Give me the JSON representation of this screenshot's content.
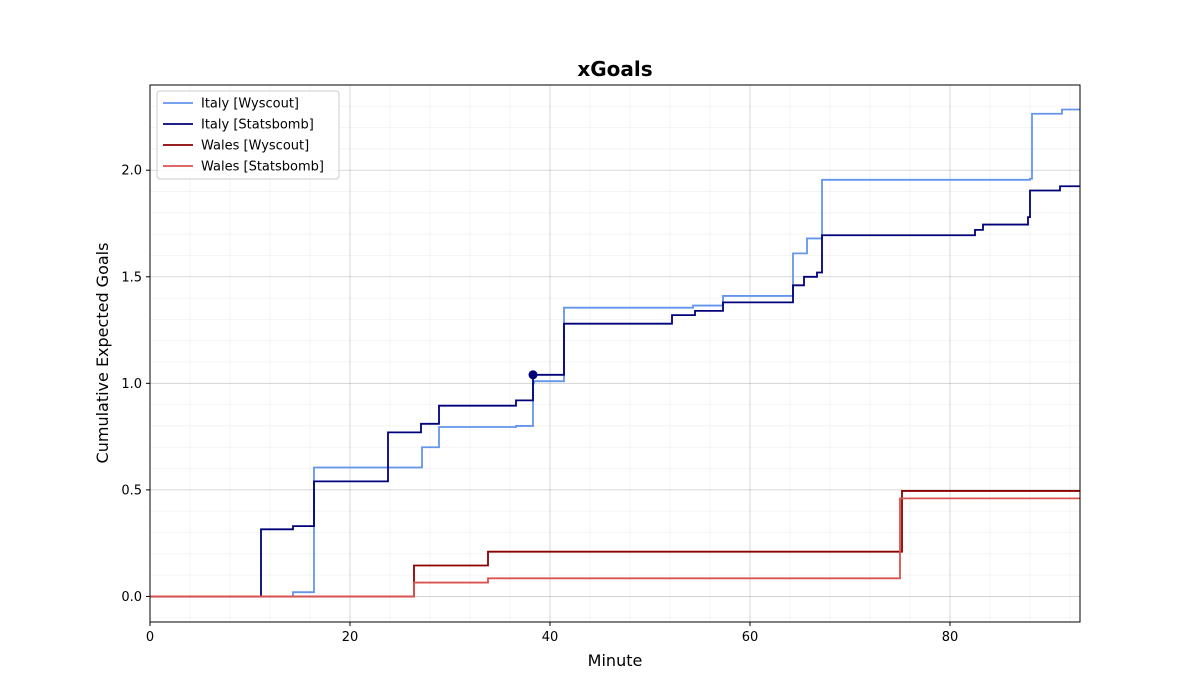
{
  "chart_data": {
    "type": "line",
    "title": "xGoals",
    "xlabel": "Minute",
    "ylabel": "Cumulative Expected Goals",
    "xlim": [
      0,
      93
    ],
    "ylim": [
      -0.12,
      2.4
    ],
    "xticks": [
      0,
      20,
      40,
      60,
      80
    ],
    "xtick_labels": [
      "0",
      "20",
      "40",
      "60",
      "80"
    ],
    "yticks": [
      0.0,
      0.5,
      1.0,
      1.5,
      2.0
    ],
    "ytick_labels": [
      "0.0",
      "0.5",
      "1.0",
      "1.5",
      "2.0"
    ],
    "grid": true,
    "minor_grid": true,
    "legend_position": "top-left",
    "step_style": "post",
    "series": [
      {
        "name": "Italy [Wyscout]",
        "color": "#6495ed",
        "x": [
          0,
          14.3,
          16.4,
          27.2,
          28.9,
          36.6,
          38.3,
          38.4,
          41.4,
          54.3,
          57.3,
          64.3,
          65.7,
          67.2,
          88.0,
          88.2,
          91.2,
          93
        ],
        "y": [
          0.0,
          0.02,
          0.605,
          0.7,
          0.795,
          0.8,
          1.0,
          1.01,
          1.355,
          1.365,
          1.41,
          1.61,
          1.68,
          1.955,
          1.96,
          2.265,
          2.285,
          2.285
        ]
      },
      {
        "name": "Italy [Statsbomb]",
        "color": "#00007a",
        "x": [
          0,
          11.1,
          14.3,
          16.4,
          23.8,
          27.1,
          28.9,
          36.6,
          38.3,
          41.4,
          52.2,
          54.5,
          57.3,
          64.3,
          65.4,
          66.7,
          67.2,
          82.5,
          83.3,
          87.8,
          88.0,
          91.0,
          93
        ],
        "y": [
          0.0,
          0.315,
          0.33,
          0.54,
          0.77,
          0.81,
          0.895,
          0.92,
          1.04,
          1.28,
          1.32,
          1.34,
          1.38,
          1.46,
          1.5,
          1.52,
          1.695,
          1.72,
          1.745,
          1.78,
          1.905,
          1.925,
          1.925
        ]
      },
      {
        "name": "Wales [Wyscout]",
        "color": "#8b0000",
        "x": [
          0,
          26.4,
          33.8,
          75.2,
          93
        ],
        "y": [
          0.0,
          0.145,
          0.21,
          0.495,
          0.495
        ]
      },
      {
        "name": "Wales [Statsbomb]",
        "color": "#d9534f",
        "x": [
          0,
          26.4,
          33.8,
          75.0,
          93
        ],
        "y": [
          0.0,
          0.065,
          0.085,
          0.46,
          0.46
        ]
      }
    ],
    "annotations": [
      {
        "type": "point",
        "series": "Italy [Statsbomb]",
        "x": 38.3,
        "y": 1.04,
        "color": "#00007a"
      }
    ]
  }
}
